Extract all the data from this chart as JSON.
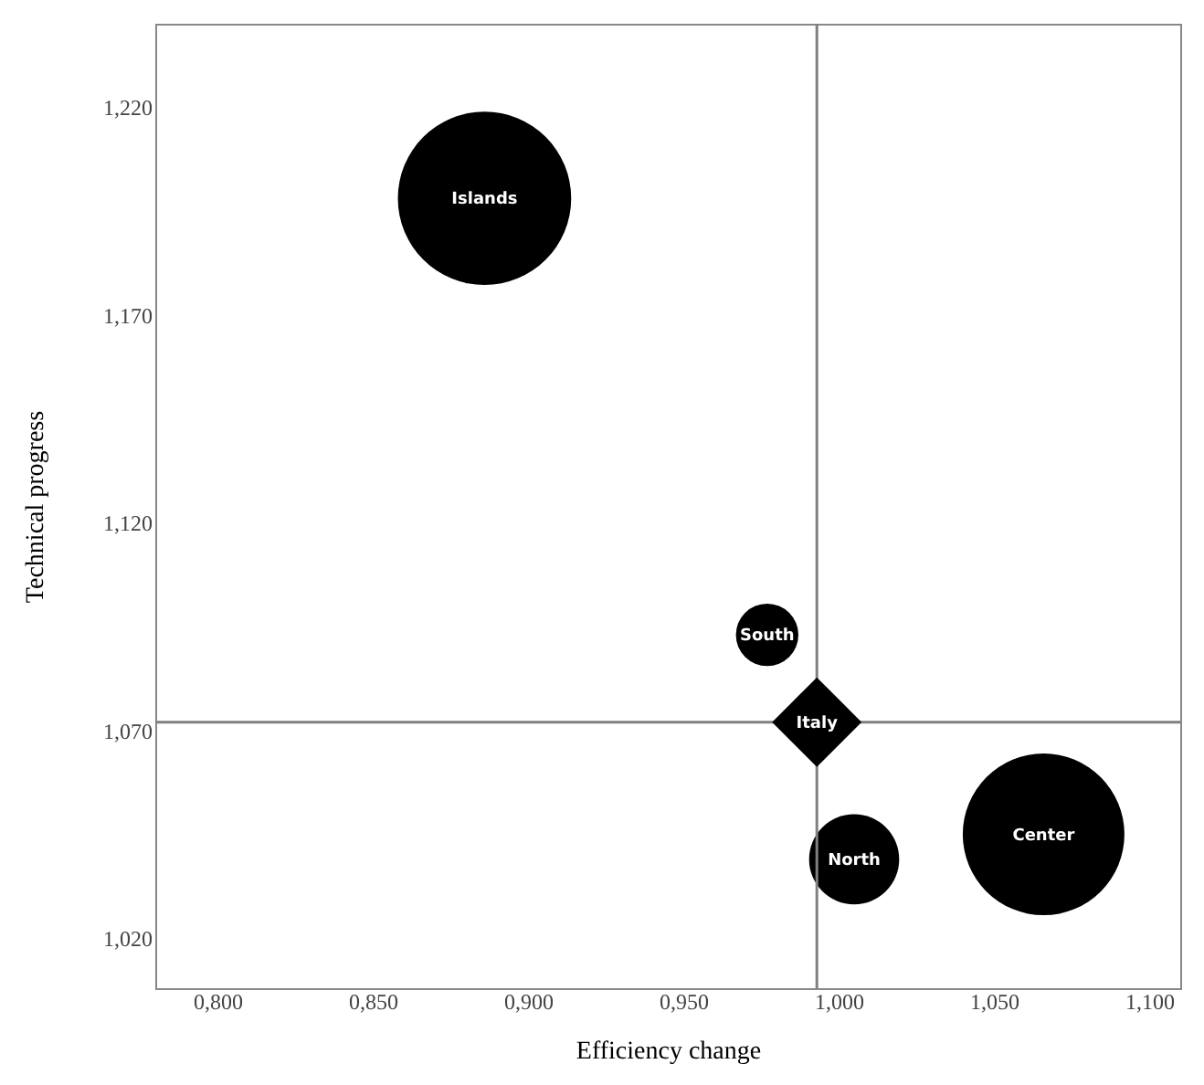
{
  "chart_data": {
    "type": "bubble",
    "xlabel": "Efficiency change",
    "ylabel": "Technical progress",
    "xlim": [
      0.78,
      1.11
    ],
    "ylim": [
      1.008,
      1.24
    ],
    "xticks": [
      {
        "value": 0.8,
        "label": "0,800"
      },
      {
        "value": 0.85,
        "label": "0,850"
      },
      {
        "value": 0.9,
        "label": "0,900"
      },
      {
        "value": 0.95,
        "label": "0,950"
      },
      {
        "value": 1.0,
        "label": "1,000"
      },
      {
        "value": 1.05,
        "label": "1,050"
      },
      {
        "value": 1.1,
        "label": "1,100"
      }
    ],
    "yticks": [
      {
        "value": 1.02,
        "label": "1,020"
      },
      {
        "value": 1.07,
        "label": "1,070"
      },
      {
        "value": 1.12,
        "label": "1,120"
      },
      {
        "value": 1.17,
        "label": "1,170"
      },
      {
        "value": 1.22,
        "label": "1,220"
      }
    ],
    "grid": false,
    "series": [
      {
        "type": "bubble",
        "color": "#000000",
        "x": [
          0.886,
          0.977,
          1.005,
          1.066
        ],
        "values": [
          1.198,
          1.093,
          1.039,
          1.045
        ],
        "sizes": [
          1,
          0.13,
          0.27,
          0.87
        ]
      },
      {
        "type": "scatter",
        "marker": "diamond",
        "color": "#000000",
        "x": [
          0.993
        ],
        "values": [
          1.072
        ]
      }
    ],
    "ref_lines": [
      {
        "axis": "x",
        "value": 0.993,
        "color": "#808080"
      },
      {
        "axis": "y",
        "value": 1.072,
        "color": "#808080"
      }
    ],
    "annotations": [
      {
        "text": "Islands",
        "x": 0.886,
        "y": 1.198
      },
      {
        "text": "South",
        "x": 0.977,
        "y": 1.093
      },
      {
        "text": "North",
        "x": 1.005,
        "y": 1.039
      },
      {
        "text": "Center",
        "x": 1.066,
        "y": 1.045
      },
      {
        "text": "Italy",
        "x": 0.993,
        "y": 1.072
      }
    ]
  }
}
